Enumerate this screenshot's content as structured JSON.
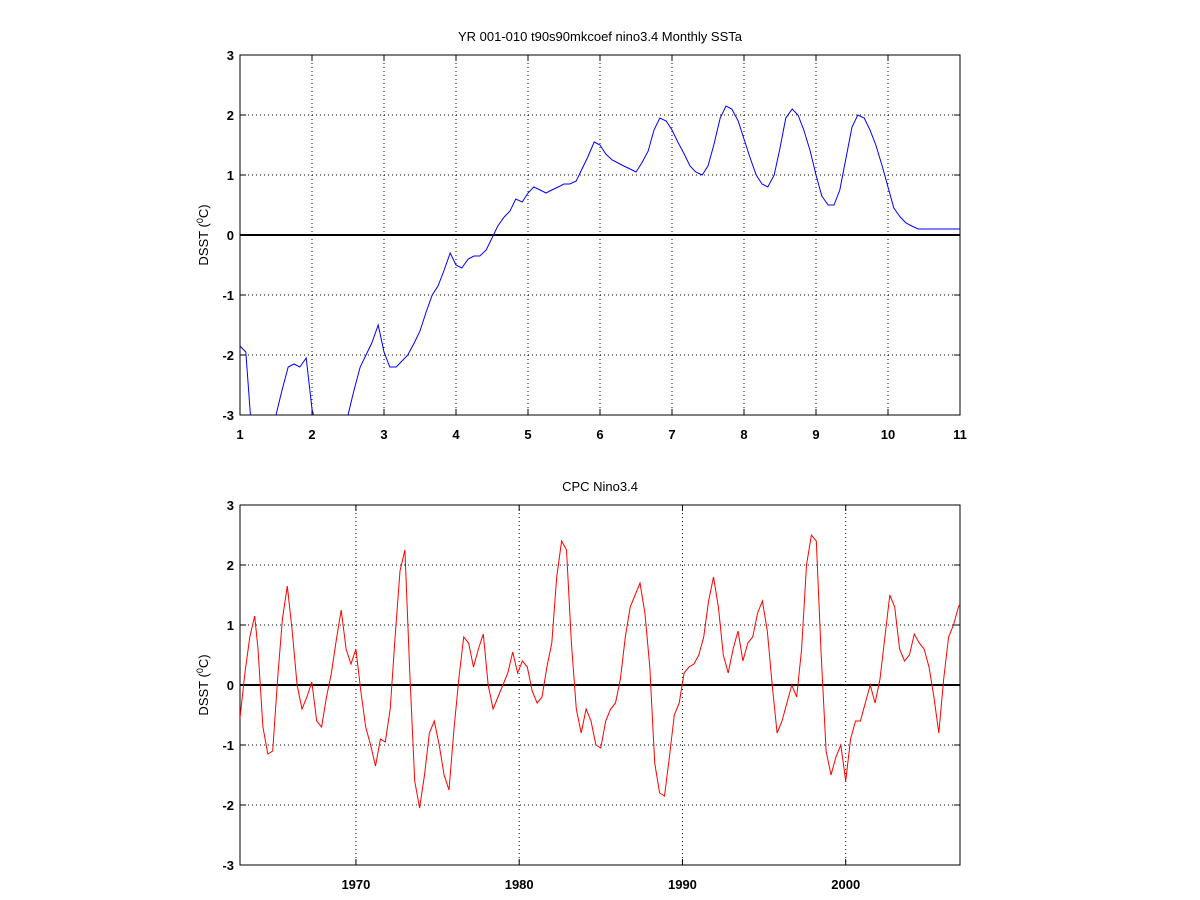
{
  "colors": {
    "background": "#ffffff",
    "axes": "#000000",
    "grid": "#000000",
    "zero_line": "#000000",
    "model_series": "#0000ff",
    "observed_series": "#ff0000"
  },
  "chart_data": [
    {
      "type": "line",
      "title": "YR 001-010 t90s90mkcoef nino3.4 Monthly SSTa",
      "xlabel": "",
      "ylabel": "DSST (⁰C)",
      "ylabel_main": "DSST (",
      "ylabel_sup": "0",
      "ylabel_end": "C)",
      "xlim": [
        1,
        11
      ],
      "ylim": [
        -3,
        3
      ],
      "xticks": [
        1,
        2,
        3,
        4,
        5,
        6,
        7,
        8,
        9,
        10,
        11
      ],
      "xtick_labels": [
        "1",
        "2",
        "3",
        "4",
        "5",
        "6",
        "7",
        "8",
        "9",
        "10",
        "11"
      ],
      "yticks": [
        -3,
        -2,
        -1,
        0,
        1,
        2,
        3
      ],
      "ytick_labels": [
        "-3",
        "-2",
        "-1",
        "0",
        "1",
        "2",
        "3"
      ],
      "grid": true,
      "zero_line": true,
      "series": [
        {
          "color": "#0000ff",
          "x": [
            1.0,
            1.08,
            1.17,
            1.25,
            1.33,
            1.42,
            1.5,
            1.58,
            1.67,
            1.75,
            1.83,
            1.92,
            2.0,
            2.08,
            2.17,
            2.25,
            2.33,
            2.42,
            2.5,
            2.58,
            2.67,
            2.75,
            2.83,
            2.92,
            3.0,
            3.08,
            3.17,
            3.25,
            3.33,
            3.42,
            3.5,
            3.58,
            3.67,
            3.75,
            3.83,
            3.92,
            4.0,
            4.08,
            4.17,
            4.25,
            4.33,
            4.42,
            4.5,
            4.58,
            4.67,
            4.75,
            4.83,
            4.92,
            5.0,
            5.08,
            5.17,
            5.25,
            5.33,
            5.42,
            5.5,
            5.58,
            5.67,
            5.75,
            5.83,
            5.92,
            6.0,
            6.08,
            6.17,
            6.25,
            6.33,
            6.42,
            6.5,
            6.58,
            6.67,
            6.75,
            6.83,
            6.92,
            7.0,
            7.08,
            7.17,
            7.25,
            7.33,
            7.42,
            7.5,
            7.58,
            7.67,
            7.75,
            7.83,
            7.92,
            8.0,
            8.08,
            8.17,
            8.25,
            8.33,
            8.42,
            8.5,
            8.58,
            8.67,
            8.75,
            8.83,
            8.92,
            9.0,
            9.08,
            9.17,
            9.25,
            9.33,
            9.42,
            9.5,
            9.58,
            9.67,
            9.75,
            9.83,
            9.92,
            10.0,
            10.08,
            10.17,
            10.25,
            10.33,
            10.42,
            10.5,
            10.58,
            10.67,
            10.75,
            10.83,
            10.92,
            11.0
          ],
          "values": [
            -1.85,
            -1.95,
            -3.4,
            -3.6,
            -3.5,
            -3.25,
            -3.0,
            -2.6,
            -2.2,
            -2.15,
            -2.2,
            -2.05,
            -2.9,
            -3.3,
            -3.5,
            -3.5,
            -3.3,
            -3.1,
            -3.0,
            -2.6,
            -2.2,
            -2.0,
            -1.8,
            -1.5,
            -1.95,
            -2.2,
            -2.2,
            -2.1,
            -2.0,
            -1.8,
            -1.6,
            -1.3,
            -1.0,
            -0.85,
            -0.6,
            -0.3,
            -0.5,
            -0.55,
            -0.4,
            -0.35,
            -0.35,
            -0.25,
            -0.05,
            0.15,
            0.3,
            0.4,
            0.6,
            0.55,
            0.7,
            0.8,
            0.75,
            0.7,
            0.75,
            0.8,
            0.85,
            0.85,
            0.9,
            1.1,
            1.3,
            1.55,
            1.5,
            1.35,
            1.25,
            1.2,
            1.15,
            1.1,
            1.05,
            1.2,
            1.4,
            1.75,
            1.95,
            1.9,
            1.75,
            1.55,
            1.35,
            1.15,
            1.05,
            1.0,
            1.15,
            1.5,
            1.95,
            2.15,
            2.1,
            1.9,
            1.6,
            1.3,
            1.0,
            0.85,
            0.8,
            1.0,
            1.45,
            1.95,
            2.1,
            2.0,
            1.75,
            1.4,
            1.0,
            0.65,
            0.5,
            0.5,
            0.75,
            1.3,
            1.8,
            2.0,
            1.95,
            1.75,
            1.5,
            1.15,
            0.8,
            0.45,
            0.3,
            0.2,
            0.15,
            0.1,
            0.1,
            0.1,
            0.1,
            0.1,
            0.1,
            0.1,
            0.1
          ]
        }
      ]
    },
    {
      "type": "line",
      "title": "CPC Nino3.4",
      "xlabel": "",
      "ylabel": "DSST (⁰C)",
      "ylabel_main": "DSST (",
      "ylabel_sup": "0",
      "ylabel_end": "C)",
      "xlim": [
        1962.9,
        2007.0
      ],
      "ylim": [
        -3,
        3
      ],
      "xticks": [
        1970,
        1980,
        1990,
        2000
      ],
      "xtick_labels": [
        "1970",
        "1980",
        "1990",
        "2000"
      ],
      "yticks": [
        -3,
        -2,
        -1,
        0,
        1,
        2,
        3
      ],
      "ytick_labels": [
        "-3",
        "-2",
        "-1",
        "0",
        "1",
        "2",
        "3"
      ],
      "grid": true,
      "zero_line": true,
      "series": [
        {
          "color": "#ff0000",
          "x": [
            1962.9,
            1963.2,
            1963.5,
            1963.8,
            1964.0,
            1964.3,
            1964.6,
            1964.9,
            1965.2,
            1965.5,
            1965.8,
            1966.1,
            1966.4,
            1966.7,
            1967.0,
            1967.3,
            1967.6,
            1967.9,
            1968.2,
            1968.5,
            1968.8,
            1969.1,
            1969.4,
            1969.7,
            1970.0,
            1970.3,
            1970.6,
            1970.9,
            1971.2,
            1971.5,
            1971.8,
            1972.1,
            1972.4,
            1972.7,
            1973.0,
            1973.3,
            1973.6,
            1973.9,
            1974.2,
            1974.5,
            1974.8,
            1975.1,
            1975.4,
            1975.7,
            1976.0,
            1976.3,
            1976.6,
            1976.9,
            1977.2,
            1977.5,
            1977.8,
            1978.1,
            1978.4,
            1978.7,
            1979.0,
            1979.3,
            1979.6,
            1979.9,
            1980.2,
            1980.5,
            1980.8,
            1981.1,
            1981.4,
            1981.7,
            1982.0,
            1982.3,
            1982.6,
            1982.9,
            1983.2,
            1983.5,
            1983.8,
            1984.1,
            1984.4,
            1984.7,
            1985.0,
            1985.3,
            1985.6,
            1985.9,
            1986.2,
            1986.5,
            1986.8,
            1987.1,
            1987.4,
            1987.7,
            1988.0,
            1988.3,
            1988.6,
            1988.9,
            1989.2,
            1989.5,
            1989.8,
            1990.1,
            1990.4,
            1990.7,
            1991.0,
            1991.3,
            1991.6,
            1991.9,
            1992.2,
            1992.5,
            1992.8,
            1993.1,
            1993.4,
            1993.7,
            1994.0,
            1994.3,
            1994.6,
            1994.9,
            1995.2,
            1995.5,
            1995.8,
            1996.1,
            1996.4,
            1996.7,
            1997.0,
            1997.3,
            1997.6,
            1997.9,
            1998.2,
            1998.5,
            1998.8,
            1999.1,
            1999.4,
            1999.7,
            2000.0,
            2000.3,
            2000.6,
            2000.9,
            2001.2,
            2001.5,
            2001.8,
            2002.1,
            2002.4,
            2002.7,
            2003.0,
            2003.3,
            2003.6,
            2003.9,
            2004.2,
            2004.5,
            2004.8,
            2005.1,
            2005.4,
            2005.7,
            2006.0,
            2006.3,
            2006.6,
            2006.9,
            2007.0
          ],
          "values": [
            -0.55,
            0.2,
            0.8,
            1.15,
            0.6,
            -0.7,
            -1.15,
            -1.1,
            0.1,
            1.1,
            1.65,
            0.9,
            0.0,
            -0.4,
            -0.2,
            0.05,
            -0.6,
            -0.7,
            -0.2,
            0.2,
            0.75,
            1.25,
            0.6,
            0.35,
            0.6,
            -0.1,
            -0.7,
            -1.0,
            -1.35,
            -0.9,
            -0.95,
            -0.4,
            0.8,
            1.9,
            2.25,
            0.2,
            -1.6,
            -2.05,
            -1.5,
            -0.8,
            -0.6,
            -1.0,
            -1.5,
            -1.75,
            -0.75,
            0.1,
            0.8,
            0.7,
            0.3,
            0.6,
            0.85,
            0.0,
            -0.4,
            -0.2,
            0.0,
            0.2,
            0.55,
            0.2,
            0.4,
            0.3,
            -0.1,
            -0.3,
            -0.2,
            0.3,
            0.7,
            1.8,
            2.4,
            2.25,
            0.7,
            -0.4,
            -0.8,
            -0.4,
            -0.6,
            -1.0,
            -1.05,
            -0.6,
            -0.4,
            -0.3,
            0.1,
            0.8,
            1.3,
            1.5,
            1.7,
            1.2,
            0.3,
            -1.3,
            -1.8,
            -1.85,
            -1.2,
            -0.5,
            -0.3,
            0.2,
            0.3,
            0.35,
            0.5,
            0.8,
            1.4,
            1.8,
            1.3,
            0.5,
            0.2,
            0.6,
            0.9,
            0.4,
            0.7,
            0.8,
            1.2,
            1.4,
            0.9,
            0.0,
            -0.8,
            -0.6,
            -0.3,
            0.0,
            -0.2,
            0.6,
            2.0,
            2.5,
            2.4,
            0.5,
            -1.1,
            -1.5,
            -1.2,
            -1.0,
            -1.6,
            -0.9,
            -0.6,
            -0.6,
            -0.3,
            0.0,
            -0.3,
            0.1,
            0.8,
            1.5,
            1.3,
            0.6,
            0.4,
            0.5,
            0.85,
            0.7,
            0.6,
            0.3,
            -0.2,
            -0.8,
            0.1,
            0.8,
            1.0,
            1.3,
            1.35
          ]
        }
      ]
    }
  ]
}
